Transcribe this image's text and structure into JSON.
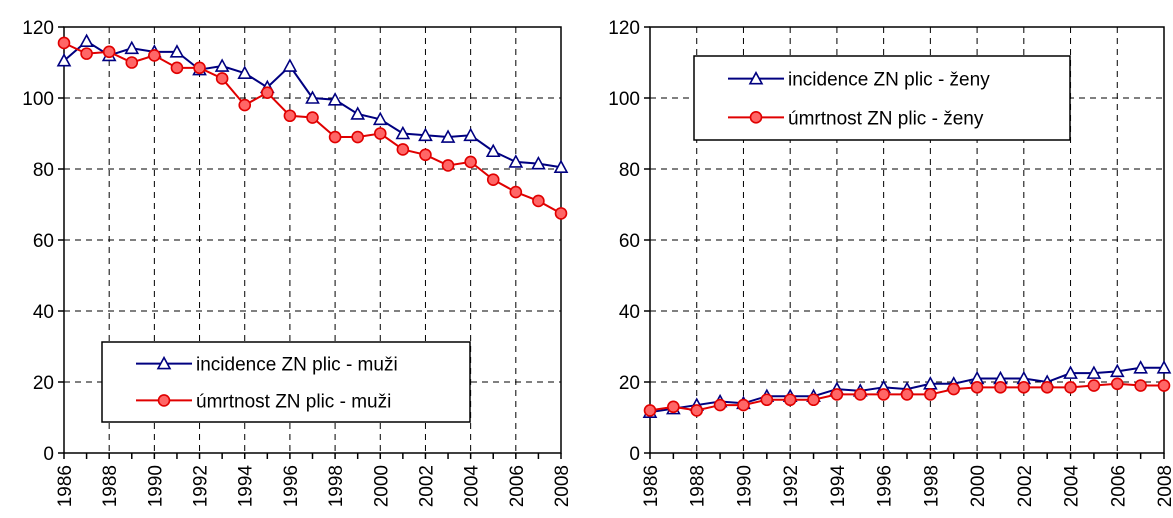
{
  "chart_data": [
    {
      "type": "line",
      "x": [
        1986,
        1987,
        1988,
        1989,
        1990,
        1991,
        1992,
        1993,
        1994,
        1995,
        1996,
        1997,
        1998,
        1999,
        2000,
        2001,
        2002,
        2003,
        2004,
        2005,
        2006,
        2007,
        2008
      ],
      "x_tick_labels": [
        "1986",
        "1988",
        "1990",
        "1992",
        "1994",
        "1996",
        "1998",
        "2000",
        "2002",
        "2004",
        "2006",
        "2008"
      ],
      "y_tick_labels": [
        "0",
        "20",
        "40",
        "60",
        "80",
        "100",
        "120"
      ],
      "ylim": [
        0,
        120
      ],
      "grid": true,
      "legend_placement": "bottom-center",
      "series": [
        {
          "name": "incidence ZN plic - muži",
          "color": "#000080",
          "marker": "triangle",
          "values": [
            110.5,
            116,
            112,
            114,
            113,
            113,
            108,
            109,
            107,
            103,
            109,
            100,
            99.5,
            95.5,
            94,
            90,
            89.5,
            89,
            89.5,
            85,
            82,
            81.5,
            80.5
          ]
        },
        {
          "name": "úmrtnost ZN plic - muži",
          "color": "#e00000",
          "marker": "circle",
          "values": [
            115.5,
            112.5,
            113,
            110,
            112,
            108.5,
            108.5,
            105.5,
            98,
            101.5,
            95,
            94.5,
            89,
            89,
            90,
            85.5,
            84,
            81,
            82,
            77,
            73.5,
            71,
            67.5
          ]
        }
      ]
    },
    {
      "type": "line",
      "x": [
        1986,
        1987,
        1988,
        1989,
        1990,
        1991,
        1992,
        1993,
        1994,
        1995,
        1996,
        1997,
        1998,
        1999,
        2000,
        2001,
        2002,
        2003,
        2004,
        2005,
        2006,
        2007,
        2008
      ],
      "x_tick_labels": [
        "1986",
        "1988",
        "1990",
        "1992",
        "1994",
        "1996",
        "1998",
        "2000",
        "2002",
        "2004",
        "2006",
        "2008"
      ],
      "y_tick_labels": [
        "0",
        "20",
        "40",
        "60",
        "80",
        "100",
        "120"
      ],
      "ylim": [
        0,
        120
      ],
      "grid": true,
      "legend_placement": "top-center",
      "series": [
        {
          "name": "incidence ZN plic - ženy",
          "color": "#000080",
          "marker": "triangle",
          "values": [
            11.5,
            12.5,
            13.5,
            14.5,
            14,
            16,
            16,
            16,
            18,
            17.5,
            18.5,
            18,
            19.5,
            19.5,
            21,
            21,
            21,
            20,
            22.5,
            22.5,
            23,
            24,
            24
          ]
        },
        {
          "name": "úmrtnost ZN plic - ženy",
          "color": "#e00000",
          "marker": "circle",
          "values": [
            12,
            13,
            12,
            13.5,
            13.5,
            15,
            15,
            15,
            16.5,
            16.5,
            16.5,
            16.5,
            16.5,
            18,
            18.5,
            18.5,
            18.5,
            18.5,
            18.5,
            19,
            19.5,
            19,
            19
          ]
        }
      ]
    }
  ]
}
